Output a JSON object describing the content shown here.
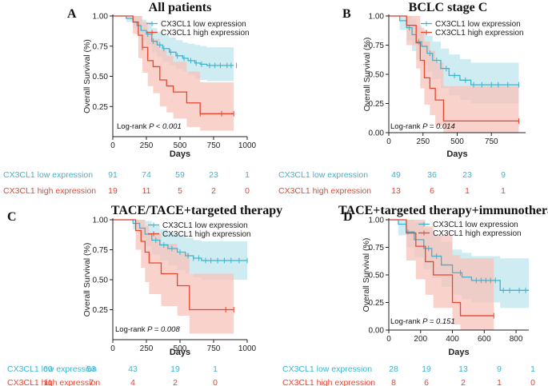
{
  "colors": {
    "low": "#3fb3cc",
    "high": "#e8452f",
    "low_band": "#bfe6ef",
    "high_band": "#f8c3bb",
    "axis": "#222222"
  },
  "chart_data": [
    {
      "type": "line",
      "id": "A",
      "letter": "A",
      "title": "All patients",
      "ylabel": "Overall Survival (%)",
      "xlabel": "Days",
      "xlim": [
        0,
        1000
      ],
      "ylim": [
        0,
        1
      ],
      "xticks": [
        0,
        250,
        500,
        750,
        1000
      ],
      "xtick_labels": [
        "0",
        "250",
        "500",
        "750",
        "1000"
      ],
      "yticks": [
        0.25,
        0.5,
        0.75,
        1.0
      ],
      "ytick_labels": [
        "0.25",
        "0.50",
        "0.75",
        "1.00"
      ],
      "legend": [
        "CX3CL1 low expression",
        "CX3CL1 high expression"
      ],
      "logrank": {
        "label": "Log-rank",
        "p": "P < 0.001"
      },
      "series": [
        {
          "name": "CX3CL1 low expression",
          "group": "low",
          "x": [
            0,
            100,
            150,
            180,
            210,
            250,
            290,
            330,
            370,
            420,
            470,
            520,
            560,
            610,
            650,
            700,
            900
          ],
          "y": [
            1.0,
            0.98,
            0.95,
            0.92,
            0.88,
            0.85,
            0.79,
            0.76,
            0.73,
            0.7,
            0.67,
            0.65,
            0.63,
            0.61,
            0.6,
            0.59,
            0.59
          ],
          "upper": [
            1.0,
            1.0,
            1.0,
            1.0,
            0.97,
            0.95,
            0.9,
            0.87,
            0.84,
            0.82,
            0.8,
            0.78,
            0.77,
            0.76,
            0.75,
            0.74,
            0.74
          ],
          "lower": [
            1.0,
            0.95,
            0.9,
            0.85,
            0.8,
            0.76,
            0.7,
            0.66,
            0.62,
            0.59,
            0.56,
            0.54,
            0.51,
            0.48,
            0.47,
            0.46,
            0.46
          ],
          "censor": [
            260,
            300,
            350,
            380,
            430,
            480,
            530,
            580,
            620,
            660,
            720,
            760,
            800,
            850,
            880,
            920
          ]
        },
        {
          "name": "CX3CL1 high expression",
          "group": "high",
          "x": [
            0,
            150,
            190,
            220,
            260,
            300,
            350,
            400,
            450,
            550,
            650,
            900
          ],
          "y": [
            1.0,
            0.95,
            0.84,
            0.74,
            0.63,
            0.58,
            0.47,
            0.42,
            0.37,
            0.28,
            0.19,
            0.19
          ],
          "upper": [
            1.0,
            1.0,
            1.0,
            0.95,
            0.86,
            0.81,
            0.72,
            0.67,
            0.62,
            0.54,
            0.45,
            0.45
          ],
          "lower": [
            1.0,
            0.85,
            0.65,
            0.53,
            0.42,
            0.36,
            0.25,
            0.2,
            0.15,
            0.08,
            0.05,
            0.05
          ],
          "censor": [
            220,
            650,
            810,
            900
          ]
        }
      ],
      "risk_table": {
        "low_label": "CX3CL1 low expression",
        "high_label": "CX3CL1 high expression",
        "low": [
          "91",
          "74",
          "59",
          "23",
          "1"
        ],
        "high": [
          "19",
          "11",
          "5",
          "2",
          "0"
        ]
      }
    },
    {
      "type": "line",
      "id": "B",
      "letter": "B",
      "title": "BCLC stage C",
      "ylabel": "Overall Survival (%)",
      "xlabel": "Days",
      "xlim": [
        0,
        1000
      ],
      "ylim": [
        0,
        1
      ],
      "xticks": [
        0,
        250,
        500,
        750
      ],
      "xtick_labels": [
        "0",
        "250",
        "500",
        "750"
      ],
      "yticks": [
        0.0,
        0.25,
        0.5,
        0.75,
        1.0
      ],
      "ytick_labels": [
        "0.00",
        "0.25",
        "0.50",
        "0.75",
        "1.00"
      ],
      "legend": [
        "CX3CL1 low expression",
        "CX3CL1 high expression"
      ],
      "logrank": {
        "label": "Log-rank",
        "p": "P = 0.014"
      },
      "series": [
        {
          "name": "CX3CL1 low expression",
          "group": "low",
          "x": [
            0,
            80,
            130,
            170,
            200,
            240,
            280,
            320,
            380,
            440,
            520,
            600,
            950
          ],
          "y": [
            1.0,
            0.96,
            0.9,
            0.84,
            0.78,
            0.74,
            0.68,
            0.62,
            0.55,
            0.49,
            0.45,
            0.41,
            0.41
          ],
          "upper": [
            1.0,
            1.0,
            1.0,
            0.97,
            0.92,
            0.88,
            0.83,
            0.78,
            0.72,
            0.67,
            0.63,
            0.6,
            0.6
          ],
          "lower": [
            1.0,
            0.88,
            0.79,
            0.7,
            0.63,
            0.58,
            0.52,
            0.46,
            0.38,
            0.32,
            0.28,
            0.25,
            0.25
          ],
          "censor": [
            150,
            220,
            300,
            350,
            420,
            480,
            560,
            620,
            680,
            750,
            800,
            870,
            950
          ]
        },
        {
          "name": "CX3CL1 high expression",
          "group": "high",
          "x": [
            0,
            130,
            200,
            230,
            260,
            300,
            340,
            400,
            950
          ],
          "y": [
            1.0,
            0.92,
            0.77,
            0.62,
            0.47,
            0.38,
            0.28,
            0.1,
            0.1
          ],
          "upper": [
            1.0,
            1.0,
            1.0,
            0.9,
            0.78,
            0.7,
            0.6,
            0.4,
            0.4
          ],
          "lower": [
            1.0,
            0.75,
            0.55,
            0.38,
            0.24,
            0.15,
            0.06,
            0.0,
            0.0
          ],
          "censor": [
            950
          ]
        }
      ],
      "risk_table": {
        "low_label": "CX3CL1 low expression",
        "high_label": "CX3CL1 high expression",
        "low": [
          "49",
          "36",
          "23",
          "9"
        ],
        "high": [
          "13",
          "6",
          "1",
          "1"
        ]
      }
    },
    {
      "type": "line",
      "id": "C",
      "letter": "C",
      "title": "TACE/TACE+targeted therapy",
      "ylabel": "Overall Survival (%)",
      "xlabel": "Days",
      "xlim": [
        0,
        1000
      ],
      "ylim": [
        0,
        1
      ],
      "xticks": [
        0,
        250,
        500,
        750,
        1000
      ],
      "xtick_labels": [
        "0",
        "250",
        "500",
        "750",
        "1000"
      ],
      "yticks": [
        0.25,
        0.5,
        0.75,
        1.0
      ],
      "ytick_labels": [
        "0.25",
        "0.50",
        "0.75",
        "1.00"
      ],
      "legend": [
        "CX3CL1 low expression",
        "CX3CL1 high expression"
      ],
      "logrank": {
        "label": "Log-rank",
        "p": "P = 0.008"
      },
      "series": [
        {
          "name": "CX3CL1 low expression",
          "group": "low",
          "x": [
            0,
            150,
            200,
            240,
            290,
            350,
            410,
            480,
            540,
            600,
            660,
            1000
          ],
          "y": [
            1.0,
            0.97,
            0.93,
            0.88,
            0.83,
            0.79,
            0.76,
            0.73,
            0.7,
            0.68,
            0.66,
            0.66
          ],
          "upper": [
            1.0,
            1.0,
            1.0,
            0.99,
            0.95,
            0.92,
            0.89,
            0.87,
            0.85,
            0.83,
            0.82,
            0.82
          ],
          "lower": [
            1.0,
            0.92,
            0.85,
            0.78,
            0.71,
            0.66,
            0.62,
            0.58,
            0.55,
            0.52,
            0.5,
            0.5
          ],
          "censor": [
            320,
            380,
            440,
            500,
            560,
            600,
            640,
            690,
            730,
            780,
            830,
            880,
            940,
            1000
          ]
        },
        {
          "name": "CX3CL1 high expression",
          "group": "high",
          "x": [
            0,
            170,
            210,
            240,
            270,
            360,
            480,
            570,
            900
          ],
          "y": [
            1.0,
            0.91,
            0.82,
            0.73,
            0.64,
            0.55,
            0.45,
            0.25,
            0.25
          ],
          "upper": [
            1.0,
            1.0,
            1.0,
            0.95,
            0.88,
            0.8,
            0.72,
            0.55,
            0.55
          ],
          "lower": [
            1.0,
            0.75,
            0.6,
            0.48,
            0.38,
            0.28,
            0.2,
            0.05,
            0.05
          ],
          "censor": [
            840,
            900
          ]
        }
      ],
      "risk_table": {
        "low_label": "CX3CL1 low expression",
        "high_label": "CX3CL1 high expression",
        "low": [
          "60",
          "53",
          "43",
          "19",
          "1"
        ],
        "high": [
          "11",
          "7",
          "4",
          "2",
          "0"
        ]
      }
    },
    {
      "type": "line",
      "id": "D",
      "letter": "D",
      "title": "TACE+targeted therapy+immunotherapy",
      "ylabel": "Overall Survival (%)",
      "xlabel": "Days",
      "xlim": [
        0,
        880
      ],
      "ylim": [
        0,
        1
      ],
      "xticks": [
        0,
        200,
        400,
        600,
        800
      ],
      "xtick_labels": [
        "0",
        "200",
        "400",
        "600",
        "800"
      ],
      "yticks": [
        0.0,
        0.25,
        0.5,
        0.75,
        1.0
      ],
      "ytick_labels": [
        "0.00",
        "0.25",
        "0.50",
        "0.75",
        "1.00"
      ],
      "legend": [
        "CX3CL1 low expression",
        "CX3CL1 high expression"
      ],
      "logrank": {
        "label": "Log-rank",
        "p": "P = 0.151"
      },
      "series": [
        {
          "name": "CX3CL1 low expression",
          "group": "low",
          "x": [
            0,
            60,
            110,
            160,
            220,
            270,
            330,
            400,
            460,
            520,
            700,
            880
          ],
          "y": [
            1.0,
            0.96,
            0.89,
            0.82,
            0.74,
            0.67,
            0.59,
            0.52,
            0.48,
            0.45,
            0.36,
            0.36
          ],
          "upper": [
            1.0,
            1.0,
            1.0,
            0.98,
            0.92,
            0.86,
            0.8,
            0.73,
            0.7,
            0.67,
            0.65,
            0.65
          ],
          "lower": [
            1.0,
            0.86,
            0.75,
            0.66,
            0.55,
            0.47,
            0.39,
            0.32,
            0.28,
            0.25,
            0.2,
            0.2
          ],
          "censor": [
            120,
            250,
            300,
            450,
            550,
            580,
            610,
            640,
            670,
            720,
            760,
            820,
            860
          ]
        },
        {
          "name": "CX3CL1 high expression",
          "group": "high",
          "x": [
            0,
            110,
            170,
            230,
            280,
            400,
            450,
            660
          ],
          "y": [
            1.0,
            0.88,
            0.76,
            0.62,
            0.5,
            0.25,
            0.13,
            0.13
          ],
          "upper": [
            1.0,
            1.0,
            1.0,
            0.94,
            0.86,
            0.68,
            0.65,
            0.65
          ],
          "lower": [
            1.0,
            0.63,
            0.46,
            0.32,
            0.2,
            0.05,
            0.0,
            0.0
          ],
          "censor": [
            660
          ]
        }
      ],
      "risk_table": {
        "low_label": "CX3CL1 low expression",
        "high_label": "CX3CL1 high expression",
        "low": [
          "28",
          "19",
          "13",
          "9",
          "1"
        ],
        "high": [
          "8",
          "6",
          "2",
          "1",
          "0"
        ]
      }
    }
  ]
}
